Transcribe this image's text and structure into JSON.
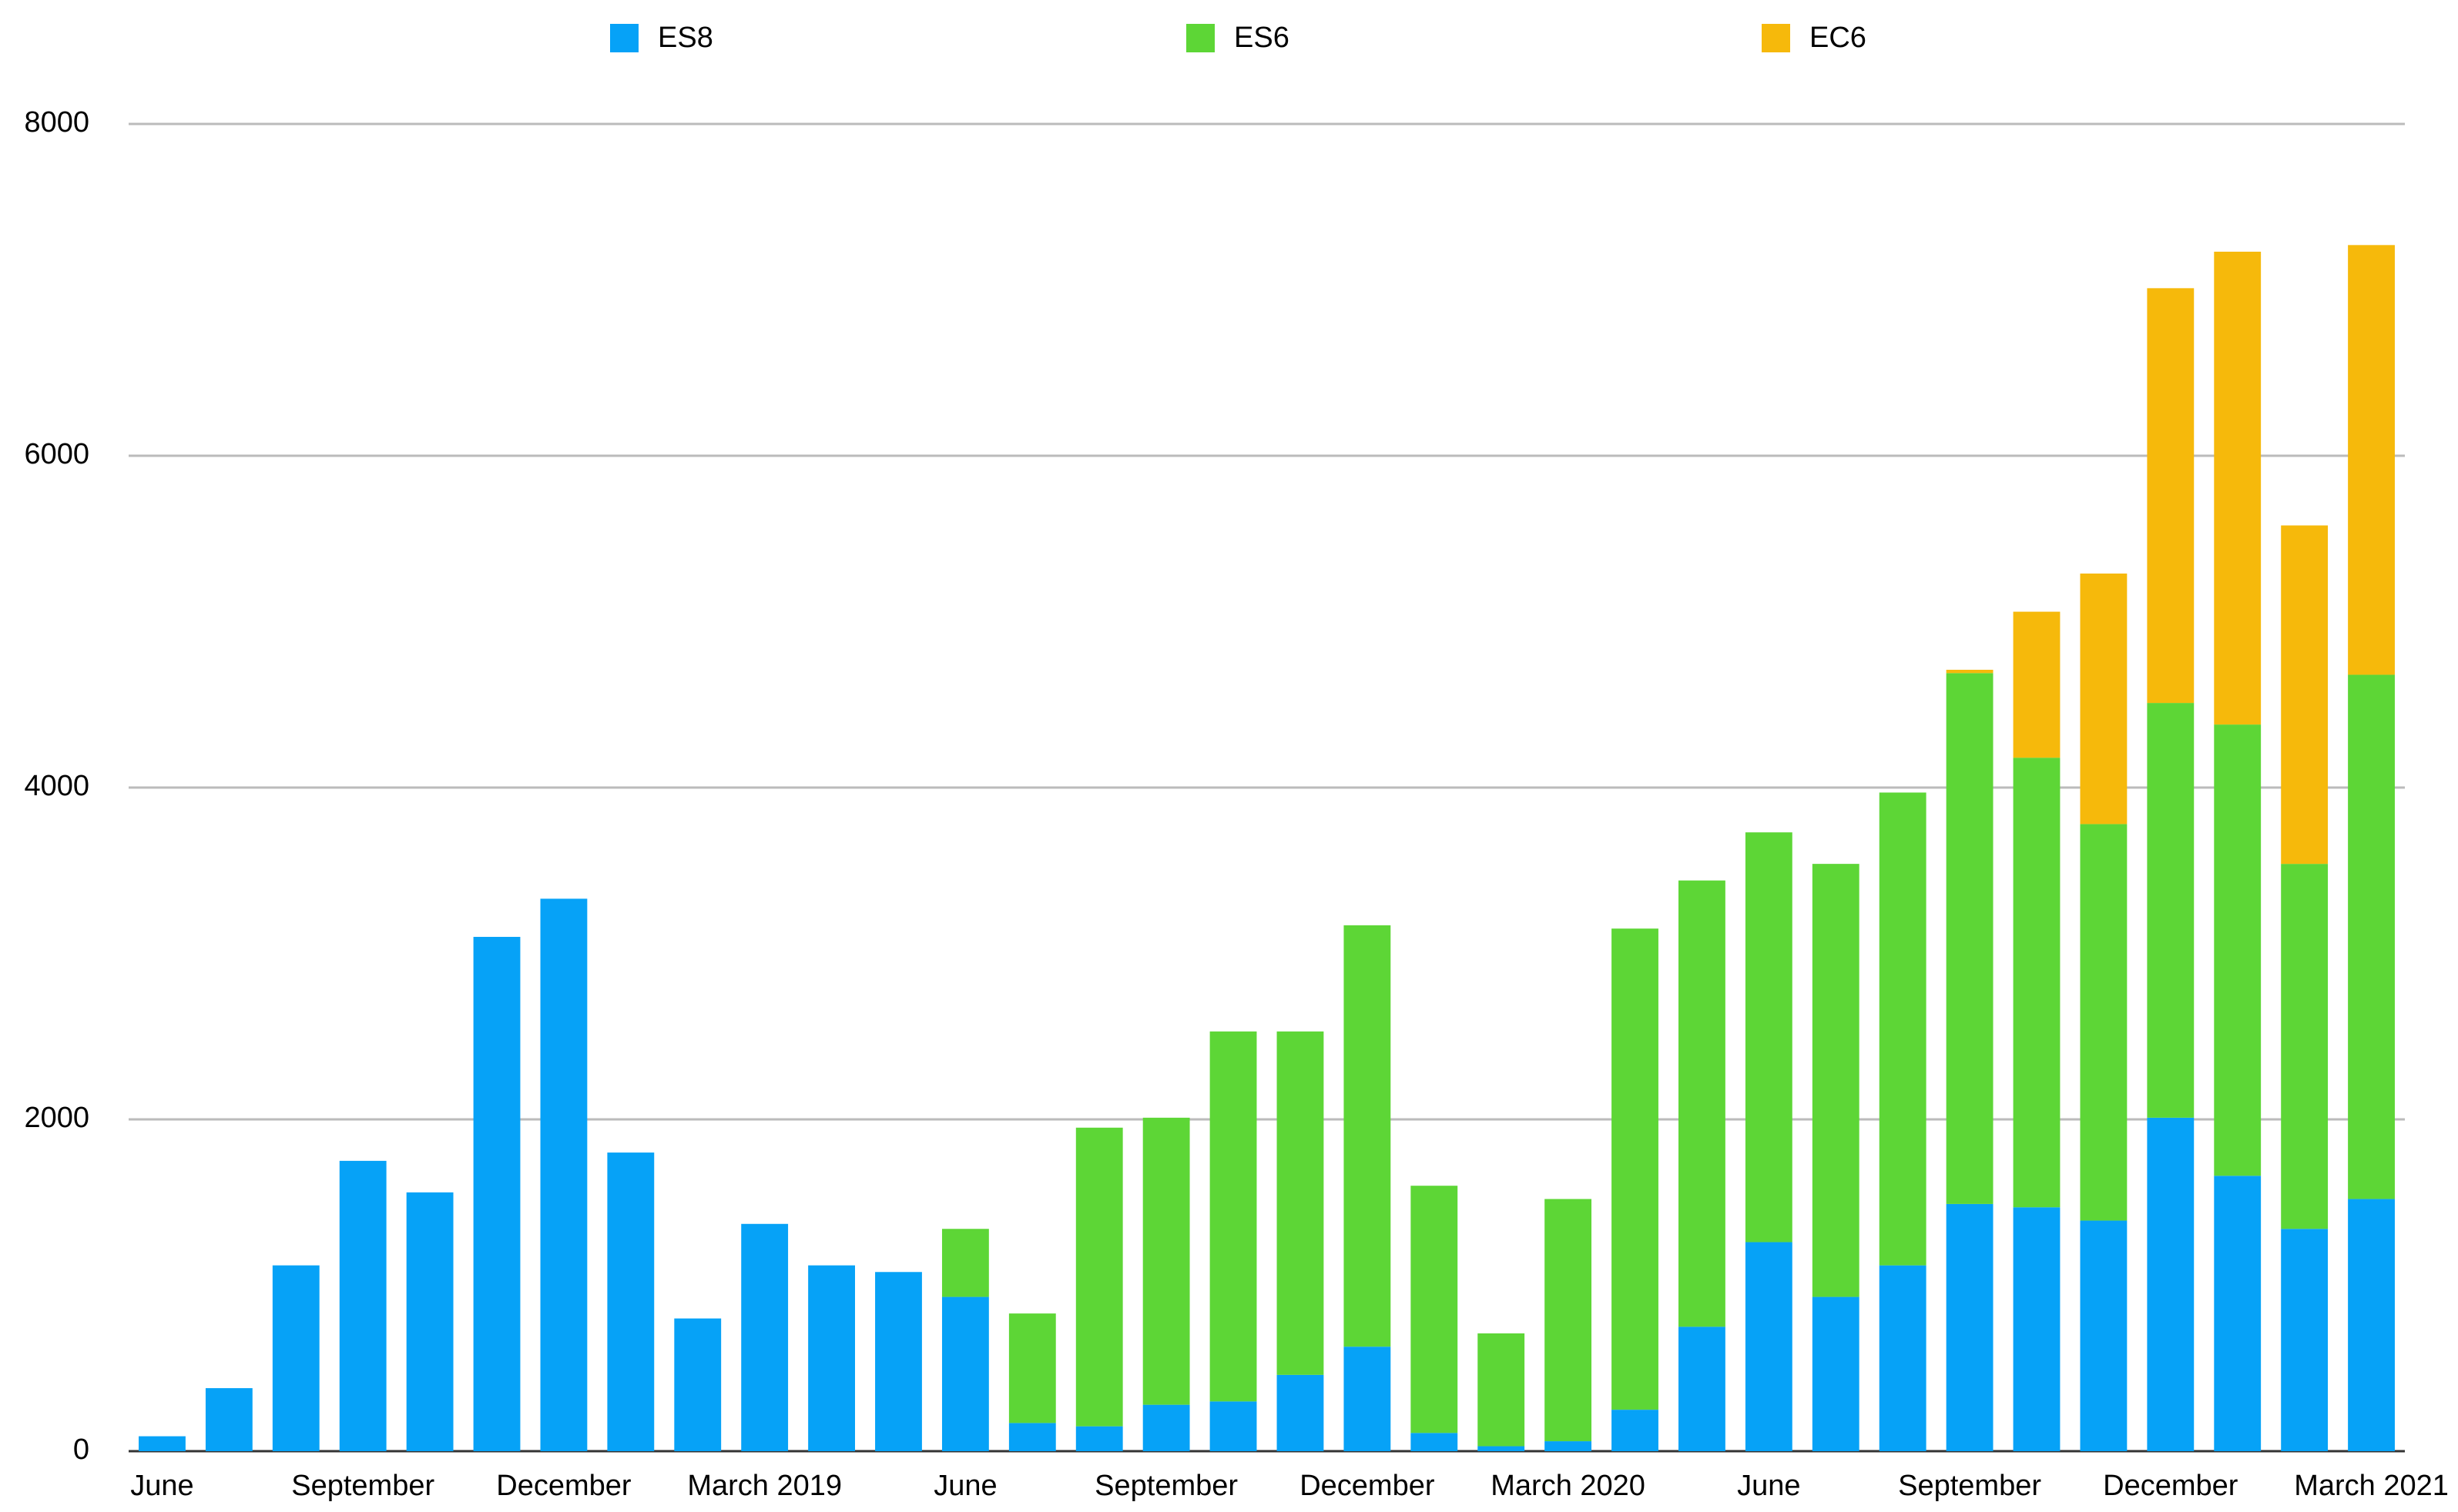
{
  "chart_data": {
    "type": "stacked_bar",
    "categories": [
      "June",
      null,
      null,
      "September",
      null,
      null,
      "December",
      null,
      null,
      "March 2019",
      null,
      null,
      "June",
      null,
      null,
      "September",
      null,
      null,
      "December",
      null,
      null,
      "March 2020",
      null,
      null,
      "June",
      null,
      null,
      "September",
      null,
      null,
      "December",
      null,
      null,
      "March 2021"
    ],
    "series": [
      {
        "name": "ES8",
        "color": "#06a2f7",
        "values": [
          90,
          380,
          1120,
          1750,
          1560,
          3100,
          3330,
          1800,
          800,
          1370,
          1120,
          1080,
          930,
          170,
          150,
          280,
          300,
          460,
          630,
          110,
          30,
          60,
          250,
          750,
          1260,
          930,
          1120,
          1490,
          1470,
          1390,
          2010,
          1660,
          1340,
          1520
        ]
      },
      {
        "name": "ES6",
        "color": "#5dd636",
        "values": [
          null,
          null,
          null,
          null,
          null,
          null,
          null,
          null,
          null,
          null,
          null,
          null,
          410,
          660,
          1800,
          1730,
          2230,
          2070,
          2540,
          1490,
          680,
          1460,
          2900,
          2690,
          2470,
          2610,
          2850,
          3200,
          2710,
          2390,
          2500,
          2720,
          2200,
          3160
        ]
      },
      {
        "name": "EC6",
        "color": "#f6b90b",
        "values": [
          null,
          null,
          null,
          null,
          null,
          null,
          null,
          null,
          null,
          null,
          null,
          null,
          null,
          null,
          null,
          null,
          null,
          null,
          null,
          null,
          null,
          null,
          null,
          null,
          null,
          null,
          null,
          20,
          880,
          1510,
          2500,
          2850,
          2040,
          2590
        ]
      }
    ],
    "ylim": [
      0,
      8000
    ],
    "yticks": [
      0,
      2000,
      4000,
      6000,
      8000
    ],
    "grid": true
  }
}
